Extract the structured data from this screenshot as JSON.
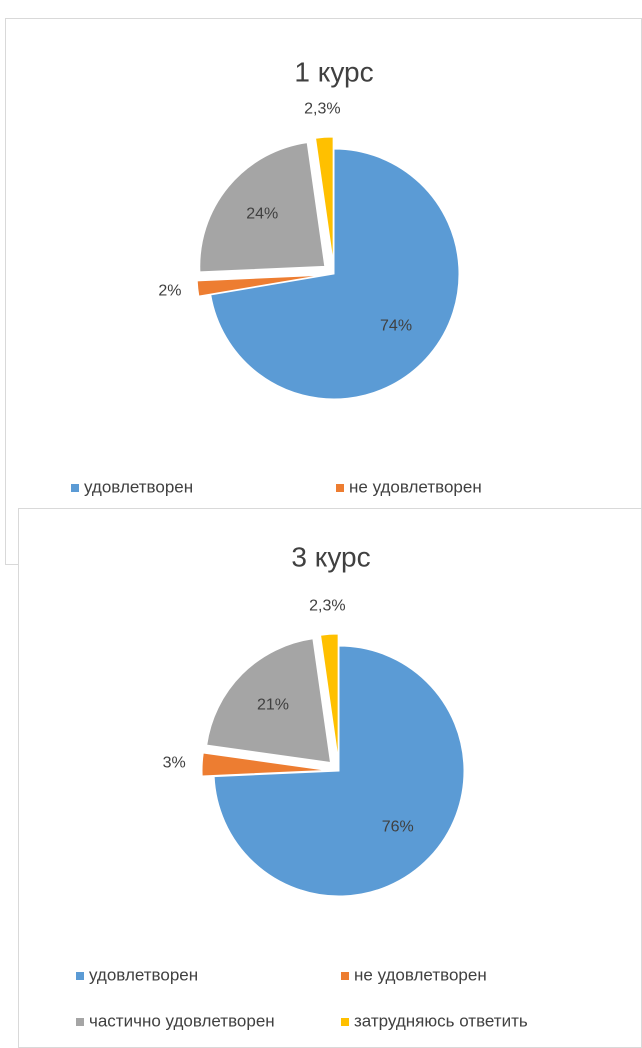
{
  "chart_data": [
    {
      "type": "pie",
      "title": "1 курс",
      "categories": [
        "удовлетворен",
        "не удовлетворен",
        null,
        null
      ],
      "values": [
        74,
        2,
        24,
        2.3
      ],
      "value_labels": [
        "74%",
        "2%",
        "24%",
        "2,3%"
      ],
      "colors": [
        "#5b9bd5",
        "#ed7d31",
        "#a5a5a5",
        "#ffc000"
      ]
    },
    {
      "type": "pie",
      "title": "3 курс",
      "categories": [
        "удовлетворен",
        "не удовлетворен",
        "частично удовлетворен",
        "затрудняюсь ответить"
      ],
      "values": [
        76,
        3,
        21,
        2.3
      ],
      "value_labels": [
        "76%",
        "3%",
        "21%",
        "2,3%"
      ],
      "colors": [
        "#5b9bd5",
        "#ed7d31",
        "#a5a5a5",
        "#ffc000"
      ]
    }
  ]
}
